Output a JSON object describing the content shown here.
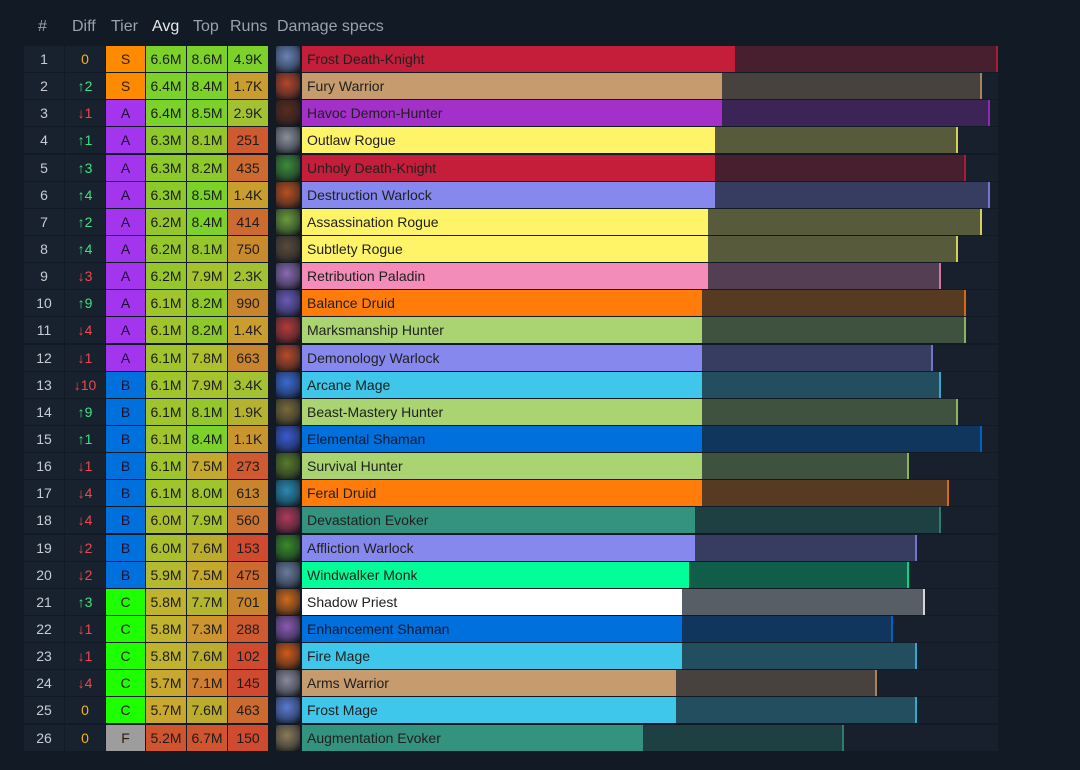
{
  "header": {
    "rank": "#",
    "diff": "Diff",
    "tier": "Tier",
    "avg": "Avg",
    "top": "Top",
    "runs": "Runs",
    "specs": "Damage specs"
  },
  "tier_colors": {
    "S": "#fe8a00",
    "A": "#a335ee",
    "B": "#0070dd",
    "C": "#1eff00",
    "F": "#9d9d9d"
  },
  "rows": [
    {
      "rank": "1",
      "diff": "0",
      "dir": "zero",
      "tier": "S",
      "avg": "6.6M",
      "top": "8.6M",
      "runs": "4.9K",
      "avg_color": "#7cd12a",
      "top_color": "#7cd12a",
      "runs_color": "#7cd12a",
      "spec": "Frost Death-Knight",
      "color": "#c41e3a",
      "avg_value": 6.6,
      "top_value": 8.6,
      "icon_color": "#6a83b5"
    },
    {
      "rank": "2",
      "diff": "↑2",
      "dir": "up",
      "tier": "S",
      "avg": "6.4M",
      "top": "8.4M",
      "runs": "1.7K",
      "avg_color": "#7cd12a",
      "top_color": "#7cd12a",
      "runs_color": "#c99e2e",
      "spec": "Fury Warrior",
      "color": "#c69b6d",
      "avg_value": 6.4,
      "top_value": 8.4,
      "icon_color": "#b3462c"
    },
    {
      "rank": "3",
      "diff": "↓1",
      "dir": "down",
      "tier": "A",
      "avg": "6.4M",
      "top": "8.5M",
      "runs": "2.9K",
      "avg_color": "#7cd12a",
      "top_color": "#7cd12a",
      "runs_color": "#a3c232",
      "spec": "Havoc Demon-Hunter",
      "color": "#a330c9",
      "avg_value": 6.4,
      "top_value": 8.5,
      "icon_color": "#5b2b1e"
    },
    {
      "rank": "4",
      "diff": "↑1",
      "dir": "up",
      "tier": "A",
      "avg": "6.3M",
      "top": "8.1M",
      "runs": "251",
      "avg_color": "#8dc92b",
      "top_color": "#95c72c",
      "runs_color": "#cf5a2f",
      "spec": "Outlaw Rogue",
      "color": "#fff468",
      "avg_value": 6.3,
      "top_value": 8.1,
      "icon_color": "#8a8f99"
    },
    {
      "rank": "5",
      "diff": "↑3",
      "dir": "up",
      "tier": "A",
      "avg": "6.3M",
      "top": "8.2M",
      "runs": "435",
      "avg_color": "#8dc92b",
      "top_color": "#8dc92b",
      "runs_color": "#cd6a30",
      "spec": "Unholy Death-Knight",
      "color": "#c41e3a",
      "avg_value": 6.3,
      "top_value": 8.2,
      "icon_color": "#3e8a3a"
    },
    {
      "rank": "6",
      "diff": "↑4",
      "dir": "up",
      "tier": "A",
      "avg": "6.3M",
      "top": "8.5M",
      "runs": "1.4K",
      "avg_color": "#8dc92b",
      "top_color": "#7cd12a",
      "runs_color": "#c99e2e",
      "spec": "Destruction Warlock",
      "color": "#8788ee",
      "avg_value": 6.3,
      "top_value": 8.5,
      "icon_color": "#b8501e"
    },
    {
      "rank": "7",
      "diff": "↑2",
      "dir": "up",
      "tier": "A",
      "avg": "6.2M",
      "top": "8.4M",
      "runs": "414",
      "avg_color": "#95c72c",
      "top_color": "#7cd12a",
      "runs_color": "#cd6a30",
      "spec": "Assassination Rogue",
      "color": "#fff468",
      "avg_value": 6.2,
      "top_value": 8.4,
      "icon_color": "#6a9b3a"
    },
    {
      "rank": "8",
      "diff": "↑4",
      "dir": "up",
      "tier": "A",
      "avg": "6.2M",
      "top": "8.1M",
      "runs": "750",
      "avg_color": "#95c72c",
      "top_color": "#95c72c",
      "runs_color": "#c98a2e",
      "spec": "Subtlety Rogue",
      "color": "#fff468",
      "avg_value": 6.2,
      "top_value": 8.1,
      "icon_color": "#5a4a3a"
    },
    {
      "rank": "9",
      "diff": "↓3",
      "dir": "down",
      "tier": "A",
      "avg": "6.2M",
      "top": "7.9M",
      "runs": "2.3K",
      "avg_color": "#95c72c",
      "top_color": "#a6c22d",
      "runs_color": "#a3c232",
      "spec": "Retribution Paladin",
      "color": "#f48cba",
      "avg_value": 6.2,
      "top_value": 7.9,
      "icon_color": "#8a6ab0"
    },
    {
      "rank": "10",
      "diff": "↑9",
      "dir": "up",
      "tier": "A",
      "avg": "6.1M",
      "top": "8.2M",
      "runs": "990",
      "avg_color": "#a0c42c",
      "top_color": "#8dc92b",
      "runs_color": "#c9852e",
      "spec": "Balance Druid",
      "color": "#ff7c0a",
      "avg_value": 6.1,
      "top_value": 8.2,
      "icon_color": "#6a5ab8"
    },
    {
      "rank": "11",
      "diff": "↓4",
      "dir": "down",
      "tier": "A",
      "avg": "6.1M",
      "top": "8.2M",
      "runs": "1.4K",
      "avg_color": "#a0c42c",
      "top_color": "#8dc92b",
      "runs_color": "#c99e2e",
      "spec": "Marksmanship Hunter",
      "color": "#aad372",
      "avg_value": 6.1,
      "top_value": 8.2,
      "icon_color": "#b53a3a"
    },
    {
      "rank": "12",
      "diff": "↓1",
      "dir": "down",
      "tier": "A",
      "avg": "6.1M",
      "top": "7.8M",
      "runs": "663",
      "avg_color": "#a0c42c",
      "top_color": "#aec02d",
      "runs_color": "#c9852e",
      "spec": "Demonology Warlock",
      "color": "#8788ee",
      "avg_value": 6.1,
      "top_value": 7.8,
      "icon_color": "#b84a2a"
    },
    {
      "rank": "13",
      "diff": "↓10",
      "dir": "down",
      "tier": "B",
      "avg": "6.1M",
      "top": "7.9M",
      "runs": "3.4K",
      "avg_color": "#a0c42c",
      "top_color": "#a6c22d",
      "runs_color": "#a3c232",
      "spec": "Arcane Mage",
      "color": "#3fc7eb",
      "avg_value": 6.1,
      "top_value": 7.9,
      "icon_color": "#3a6ad0"
    },
    {
      "rank": "14",
      "diff": "↑9",
      "dir": "up",
      "tier": "B",
      "avg": "6.1M",
      "top": "8.1M",
      "runs": "1.9K",
      "avg_color": "#a0c42c",
      "top_color": "#95c72c",
      "runs_color": "#b5b230",
      "spec": "Beast-Mastery Hunter",
      "color": "#aad372",
      "avg_value": 6.1,
      "top_value": 8.1,
      "icon_color": "#7a6a3a"
    },
    {
      "rank": "15",
      "diff": "↑1",
      "dir": "up",
      "tier": "B",
      "avg": "6.1M",
      "top": "8.4M",
      "runs": "1.1K",
      "avg_color": "#a0c42c",
      "top_color": "#7cd12a",
      "runs_color": "#c9952e",
      "spec": "Elemental Shaman",
      "color": "#0070dd",
      "avg_value": 6.1,
      "top_value": 8.4,
      "icon_color": "#3a5ad0"
    },
    {
      "rank": "16",
      "diff": "↓1",
      "dir": "down",
      "tier": "B",
      "avg": "6.1M",
      "top": "7.5M",
      "runs": "273",
      "avg_color": "#a0c42c",
      "top_color": "#c4a92e",
      "runs_color": "#cf5a2f",
      "spec": "Survival Hunter",
      "color": "#aad372",
      "avg_value": 6.1,
      "top_value": 7.5,
      "icon_color": "#5a7a2a"
    },
    {
      "rank": "17",
      "diff": "↓4",
      "dir": "down",
      "tier": "B",
      "avg": "6.1M",
      "top": "8.0M",
      "runs": "613",
      "avg_color": "#a0c42c",
      "top_color": "#9fc42c",
      "runs_color": "#c9852e",
      "spec": "Feral Druid",
      "color": "#ff7c0a",
      "avg_value": 6.1,
      "top_value": 8.0,
      "icon_color": "#2a8ab0"
    },
    {
      "rank": "18",
      "diff": "↓4",
      "dir": "down",
      "tier": "B",
      "avg": "6.0M",
      "top": "7.9M",
      "runs": "560",
      "avg_color": "#aabf2d",
      "top_color": "#a6c22d",
      "runs_color": "#cd7430",
      "spec": "Devastation Evoker",
      "color": "#33937f",
      "avg_value": 6.0,
      "top_value": 7.9,
      "icon_color": "#b03a5a"
    },
    {
      "rank": "19",
      "diff": "↓2",
      "dir": "down",
      "tier": "B",
      "avg": "6.0M",
      "top": "7.6M",
      "runs": "153",
      "avg_color": "#aabf2d",
      "top_color": "#bcac2e",
      "runs_color": "#d04a30",
      "spec": "Affliction Warlock",
      "color": "#8788ee",
      "avg_value": 6.0,
      "top_value": 7.6,
      "icon_color": "#3a8a2a"
    },
    {
      "rank": "20",
      "diff": "↓2",
      "dir": "down",
      "tier": "B",
      "avg": "5.9M",
      "top": "7.5M",
      "runs": "475",
      "avg_color": "#b5b930",
      "top_color": "#c4a92e",
      "runs_color": "#cd6a30",
      "spec": "Windwalker Monk",
      "color": "#00ff98",
      "avg_value": 5.9,
      "top_value": 7.5,
      "icon_color": "#6a7a9a"
    },
    {
      "rank": "21",
      "diff": "↑3",
      "dir": "up",
      "tier": "C",
      "avg": "5.8M",
      "top": "7.7M",
      "runs": "701",
      "avg_color": "#bfb32f",
      "top_color": "#b5b630",
      "runs_color": "#c9852e",
      "spec": "Shadow Priest",
      "color": "#ffffff",
      "avg_value": 5.8,
      "top_value": 7.7,
      "icon_color": "#d06a1a"
    },
    {
      "rank": "22",
      "diff": "↓1",
      "dir": "down",
      "tier": "C",
      "avg": "5.8M",
      "top": "7.3M",
      "runs": "288",
      "avg_color": "#bfb32f",
      "top_color": "#cc952f",
      "runs_color": "#cf5a2f",
      "spec": "Enhancement Shaman",
      "color": "#0070dd",
      "avg_value": 5.8,
      "top_value": 7.3,
      "icon_color": "#8a5ab0"
    },
    {
      "rank": "23",
      "diff": "↓1",
      "dir": "down",
      "tier": "C",
      "avg": "5.8M",
      "top": "7.6M",
      "runs": "102",
      "avg_color": "#bfb32f",
      "top_color": "#bcac2e",
      "runs_color": "#d04a30",
      "spec": "Fire Mage",
      "color": "#3fc7eb",
      "avg_value": 5.8,
      "top_value": 7.6,
      "icon_color": "#d05a1a"
    },
    {
      "rank": "24",
      "diff": "↓4",
      "dir": "down",
      "tier": "C",
      "avg": "5.7M",
      "top": "7.1M",
      "runs": "145",
      "avg_color": "#c9a82f",
      "top_color": "#cf7f2f",
      "runs_color": "#d04a30",
      "spec": "Arms Warrior",
      "color": "#c69b6d",
      "avg_value": 5.7,
      "top_value": 7.1,
      "icon_color": "#8a8a9a"
    },
    {
      "rank": "25",
      "diff": "0",
      "dir": "zero",
      "tier": "C",
      "avg": "5.7M",
      "top": "7.6M",
      "runs": "463",
      "avg_color": "#c9a82f",
      "top_color": "#bcac2e",
      "runs_color": "#cd6a30",
      "spec": "Frost Mage",
      "color": "#3fc7eb",
      "avg_value": 5.7,
      "top_value": 7.6,
      "icon_color": "#5a7ad0"
    },
    {
      "rank": "26",
      "diff": "0",
      "dir": "zero",
      "tier": "F",
      "avg": "5.2M",
      "top": "6.7M",
      "runs": "150",
      "avg_color": "#d0552f",
      "top_color": "#d0552f",
      "runs_color": "#d04a30",
      "spec": "Augmentation Evoker",
      "color": "#33937f",
      "avg_value": 5.2,
      "top_value": 6.7,
      "icon_color": "#8a7a5a"
    }
  ]
}
